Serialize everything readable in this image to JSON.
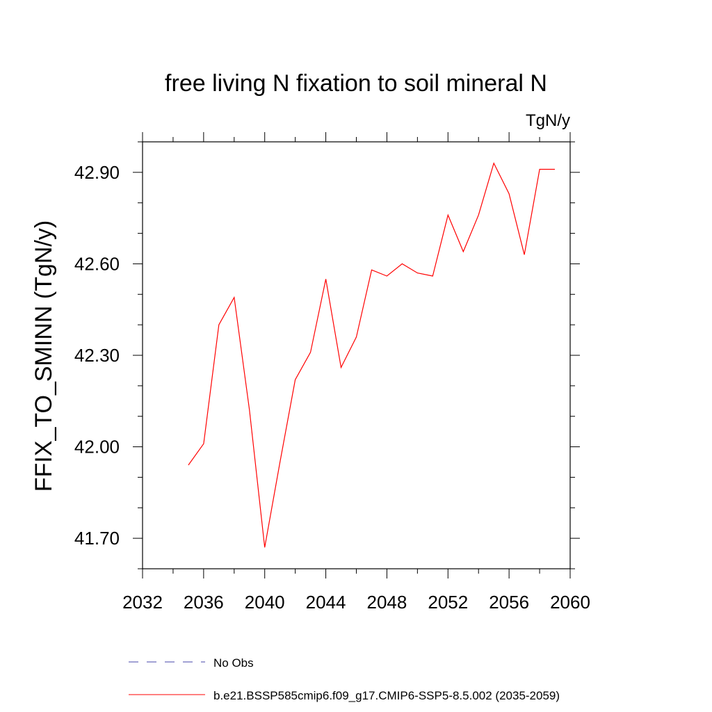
{
  "chart_data": {
    "type": "line",
    "title": "free living N fixation to soil mineral N",
    "units_label": "TgN/y",
    "ylabel": "FFIX_TO_SMINN  (TgN/y)",
    "xlabel": "",
    "xlim": [
      2032,
      2060
    ],
    "ylim": [
      41.6,
      43.0
    ],
    "x_ticks": [
      2032,
      2036,
      2040,
      2044,
      2048,
      2052,
      2056,
      2060
    ],
    "x_tick_labels": [
      "2032",
      "2036",
      "2040",
      "2044",
      "2048",
      "2052",
      "2056",
      "2060"
    ],
    "y_ticks": [
      41.7,
      42.0,
      42.3,
      42.6,
      42.9
    ],
    "y_tick_labels": [
      "41.70",
      "42.00",
      "42.30",
      "42.60",
      "42.90"
    ],
    "grid": false,
    "legend_position": "bottom",
    "series": [
      {
        "name": "No Obs",
        "color": "#4444aa",
        "dashed": true,
        "x": [],
        "y": []
      },
      {
        "name": "b.e21.BSSP585cmip6.f09_g17.CMIP6-SSP5-8.5.002 (2035-2059)",
        "color": "#ff0000",
        "dashed": false,
        "x": [
          2035,
          2036,
          2037,
          2038,
          2039,
          2040,
          2041,
          2042,
          2043,
          2044,
          2045,
          2046,
          2047,
          2048,
          2049,
          2050,
          2051,
          2052,
          2053,
          2054,
          2055,
          2056,
          2057,
          2058,
          2059
        ],
        "y": [
          41.94,
          42.01,
          42.4,
          42.49,
          42.12,
          41.67,
          41.95,
          42.22,
          42.31,
          42.55,
          42.26,
          42.36,
          42.58,
          42.56,
          42.6,
          42.57,
          42.56,
          42.76,
          42.64,
          42.76,
          42.93,
          42.83,
          42.63,
          42.91,
          42.91
        ]
      }
    ]
  }
}
